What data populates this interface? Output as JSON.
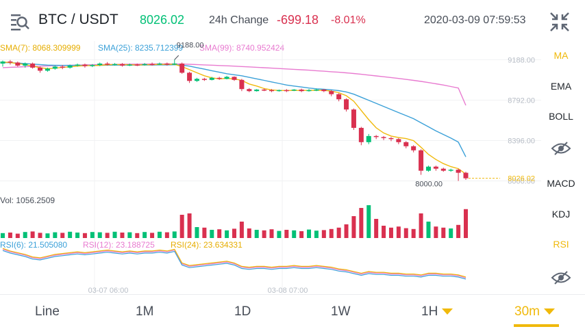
{
  "header": {
    "pair": "BTC / USDT",
    "price": "8026.02",
    "change_label": "24h Change",
    "change_abs": "-699.18",
    "change_pct": "-8.01%",
    "datetime": "2020-03-09 07:59:53"
  },
  "indicators": {
    "sma7": "SMA(7): 8068.309999",
    "sma25": "SMA(25): 8235.712399",
    "sma99": "SMA(99): 8740.952424",
    "volume": "Vol: 1056.2509",
    "rsi6": "RSI(6): 21.505080",
    "rsi12": "RSI(12): 23.188725",
    "rsi24": "RSI(24): 23.634331"
  },
  "price_axis": [
    "9188.00",
    "8792.00",
    "8396.00",
    "8000.00"
  ],
  "annotations": {
    "high": "9188.00",
    "low": "8000.00",
    "current": "8026.02"
  },
  "time_axis": [
    "03-07 06:00",
    "03-08 07:00"
  ],
  "side_menu": [
    {
      "label": "MA",
      "active": true
    },
    {
      "label": "EMA",
      "active": false
    },
    {
      "label": "BOLL",
      "active": false
    },
    {
      "label": "eye-icon",
      "active": false
    },
    {
      "label": "MACD",
      "active": false
    },
    {
      "label": "KDJ",
      "active": false
    },
    {
      "label": "RSI",
      "active": true
    },
    {
      "label": "eye-icon",
      "active": false
    }
  ],
  "timeframes": [
    {
      "label": "Line",
      "active": false
    },
    {
      "label": "1M",
      "active": false
    },
    {
      "label": "1D",
      "active": false
    },
    {
      "label": "1W",
      "active": false
    },
    {
      "label": "1H",
      "active": false,
      "dropdown": true
    },
    {
      "label": "30m",
      "active": true,
      "dropdown": true
    }
  ],
  "colors": {
    "up": "#02c076",
    "down": "#d9304f",
    "sma7": "#f0b90b",
    "sma25": "#3aa0d8",
    "sma99": "#e87ad0",
    "accent": "#f0b90b"
  },
  "chart_data": {
    "type": "candlestick",
    "price_range": [
      7950,
      9250
    ],
    "candles": [
      [
        9150,
        9170,
        9120,
        9180
      ],
      [
        9170,
        9160,
        9140,
        9185
      ],
      [
        9160,
        9130,
        9120,
        9170
      ],
      [
        9130,
        9150,
        9110,
        9160
      ],
      [
        9150,
        9110,
        9100,
        9160
      ],
      [
        9110,
        9080,
        9060,
        9120
      ],
      [
        9080,
        9100,
        9070,
        9110
      ],
      [
        9100,
        9120,
        9090,
        9130
      ],
      [
        9120,
        9110,
        9095,
        9135
      ],
      [
        9110,
        9130,
        9100,
        9140
      ],
      [
        9130,
        9140,
        9120,
        9150
      ],
      [
        9140,
        9125,
        9110,
        9150
      ],
      [
        9125,
        9135,
        9115,
        9145
      ],
      [
        9135,
        9150,
        9125,
        9160
      ],
      [
        9150,
        9140,
        9130,
        9165
      ],
      [
        9140,
        9145,
        9130,
        9155
      ],
      [
        9145,
        9130,
        9120,
        9155
      ],
      [
        9130,
        9140,
        9125,
        9150
      ],
      [
        9140,
        9135,
        9125,
        9150
      ],
      [
        9135,
        9145,
        9130,
        9155
      ],
      [
        9145,
        9140,
        9130,
        9160
      ],
      [
        9140,
        9150,
        9135,
        9160
      ],
      [
        9150,
        9140,
        9130,
        9160
      ],
      [
        9140,
        9150,
        9135,
        9188
      ],
      [
        9150,
        9060,
        9050,
        9160
      ],
      [
        9060,
        8980,
        8960,
        9070
      ],
      [
        8980,
        9000,
        8970,
        9010
      ],
      [
        9000,
        8990,
        8980,
        9010
      ],
      [
        8990,
        9010,
        8985,
        9020
      ],
      [
        9010,
        9000,
        8990,
        9020
      ],
      [
        9000,
        9020,
        8995,
        9030
      ],
      [
        9020,
        8990,
        8980,
        9025
      ],
      [
        8990,
        8900,
        8880,
        9000
      ],
      [
        8900,
        8880,
        8870,
        8910
      ],
      [
        8880,
        8895,
        8875,
        8900
      ],
      [
        8895,
        8890,
        8880,
        8905
      ],
      [
        8890,
        8880,
        8870,
        8900
      ],
      [
        8880,
        8890,
        8875,
        8895
      ],
      [
        8890,
        8885,
        8870,
        8900
      ],
      [
        8885,
        8895,
        8880,
        8900
      ],
      [
        8895,
        8880,
        8870,
        8905
      ],
      [
        8880,
        8890,
        8875,
        8900
      ],
      [
        8890,
        8895,
        8880,
        8905
      ],
      [
        8895,
        8880,
        8870,
        8900
      ],
      [
        8880,
        8850,
        8830,
        8890
      ],
      [
        8850,
        8800,
        8780,
        8860
      ],
      [
        8800,
        8700,
        8680,
        8810
      ],
      [
        8700,
        8520,
        8500,
        8710
      ],
      [
        8520,
        8380,
        8350,
        8530
      ],
      [
        8380,
        8440,
        8360,
        8460
      ],
      [
        8440,
        8430,
        8410,
        8450
      ],
      [
        8430,
        8420,
        8400,
        8440
      ],
      [
        8420,
        8410,
        8390,
        8430
      ],
      [
        8410,
        8380,
        8360,
        8420
      ],
      [
        8380,
        8340,
        8320,
        8390
      ],
      [
        8340,
        8300,
        8280,
        8350
      ],
      [
        8300,
        8100,
        8060,
        8310
      ],
      [
        8100,
        8140,
        8090,
        8150
      ],
      [
        8140,
        8120,
        8100,
        8150
      ],
      [
        8120,
        8100,
        8090,
        8130
      ],
      [
        8100,
        8110,
        8090,
        8120
      ],
      [
        8110,
        8080,
        8000,
        8120
      ],
      [
        8080,
        8026,
        8010,
        8090
      ]
    ],
    "sma7": [
      9165,
      9160,
      9150,
      9140,
      9125,
      9110,
      9100,
      9105,
      9112,
      9118,
      9125,
      9130,
      9130,
      9133,
      9138,
      9140,
      9140,
      9138,
      9137,
      9138,
      9140,
      9141,
      9142,
      9143,
      9120,
      9090,
      9060,
      9030,
      9010,
      9000,
      9005,
      9000,
      8985,
      8950,
      8930,
      8905,
      8892,
      8886,
      8886,
      8887,
      8887,
      8887,
      8888,
      8888,
      8880,
      8865,
      8835,
      8780,
      8690,
      8600,
      8520,
      8470,
      8440,
      8425,
      8415,
      8395,
      8330,
      8260,
      8210,
      8170,
      8140,
      8120,
      8068
    ],
    "sma25": [
      9160,
      9158,
      9155,
      9150,
      9145,
      9140,
      9135,
      9133,
      9132,
      9132,
      9132,
      9132,
      9132,
      9133,
      9134,
      9135,
      9135,
      9135,
      9135,
      9136,
      9136,
      9137,
      9137,
      9138,
      9135,
      9125,
      9110,
      9095,
      9080,
      9065,
      9050,
      9040,
      9030,
      9015,
      9000,
      8985,
      8970,
      8955,
      8940,
      8930,
      8920,
      8910,
      8903,
      8898,
      8893,
      8885,
      8872,
      8850,
      8820,
      8790,
      8760,
      8730,
      8700,
      8670,
      8640,
      8610,
      8570,
      8530,
      8490,
      8455,
      8420,
      8380,
      8236
    ],
    "sma99": [
      9110,
      9113,
      9116,
      9119,
      9122,
      9125,
      9127,
      9129,
      9131,
      9133,
      9135,
      9137,
      9138,
      9140,
      9141,
      9142,
      9143,
      9144,
      9145,
      9145,
      9146,
      9146,
      9146,
      9146,
      9145,
      9143,
      9140,
      9137,
      9134,
      9131,
      9128,
      9125,
      9121,
      9117,
      9113,
      9109,
      9105,
      9101,
      9097,
      9093,
      9089,
      9085,
      9080,
      9075,
      9070,
      9065,
      9059,
      9052,
      9045,
      9037,
      9029,
      9021,
      9013,
      9004,
      8995,
      8985,
      8975,
      8964,
      8952,
      8940,
      8925,
      8910,
      8741
    ],
    "volume": [
      180,
      200,
      160,
      220,
      240,
      190,
      170,
      210,
      190,
      230,
      200,
      180,
      220,
      210,
      190,
      230,
      200,
      210,
      180,
      220,
      190,
      230,
      210,
      240,
      850,
      900,
      400,
      380,
      300,
      320,
      280,
      340,
      600,
      350,
      300,
      280,
      320,
      260,
      300,
      280,
      250,
      310,
      270,
      290,
      330,
      380,
      500,
      800,
      1100,
      1200,
      700,
      450,
      380,
      420,
      360,
      330,
      900,
      600,
      420,
      380,
      350,
      480,
      1056
    ],
    "rsi": [
      55,
      52,
      50,
      48,
      45,
      44,
      46,
      48,
      49,
      50,
      51,
      50,
      51,
      52,
      53,
      52,
      51,
      52,
      51,
      52,
      52,
      53,
      52,
      54,
      38,
      35,
      36,
      37,
      38,
      39,
      40,
      38,
      34,
      33,
      34,
      34,
      33,
      34,
      34,
      35,
      34,
      34,
      35,
      34,
      33,
      31,
      30,
      28,
      26,
      28,
      27,
      27,
      26,
      26,
      25,
      25,
      24,
      26,
      26,
      25,
      25,
      24,
      21.5
    ]
  }
}
